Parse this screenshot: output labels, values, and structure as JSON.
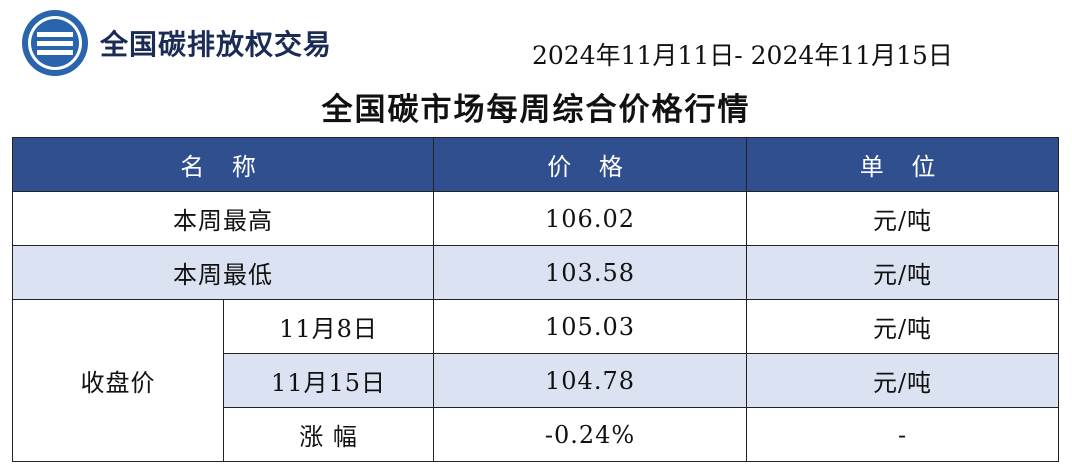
{
  "header": {
    "logo_icon": "carbon-exchange-logo-icon",
    "brand_name": "全国碳排放权交易",
    "date_range": "2024年11月11日- 2024年11月15日",
    "accent_color": "#2f4f8f",
    "band_color": "#dbe3f2"
  },
  "title": "全国碳市场每周综合价格行情",
  "table": {
    "headers": [
      "名 称",
      "价 格",
      "单 位"
    ],
    "rows": [
      {
        "name": "本周最高",
        "price": "106.02",
        "unit": "元/吨"
      },
      {
        "name": "本周最低",
        "price": "103.58",
        "unit": "元/吨"
      }
    ],
    "closing": {
      "label": "收盘价",
      "rows": [
        {
          "name": "11月8日",
          "price": "105.03",
          "unit": "元/吨"
        },
        {
          "name": "11月15日",
          "price": "104.78",
          "unit": "元/吨"
        },
        {
          "name": "涨 幅",
          "price": "-0.24%",
          "unit": "-"
        }
      ]
    }
  }
}
